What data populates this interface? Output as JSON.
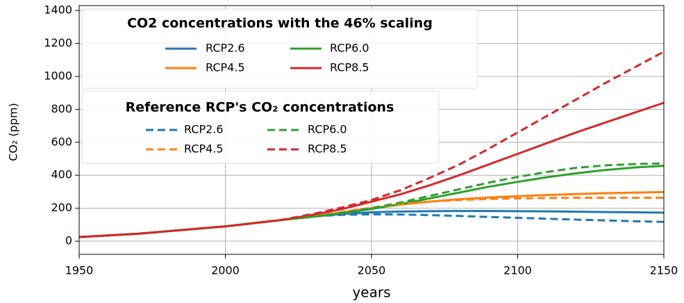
{
  "chart_data": {
    "type": "line",
    "xlabel": "years",
    "ylabel": "CO₂ (ppm)",
    "x": [
      1950,
      1960,
      1970,
      1980,
      1990,
      2000,
      2010,
      2020,
      2030,
      2040,
      2050,
      2060,
      2070,
      2080,
      2090,
      2100,
      2110,
      2120,
      2130,
      2140,
      2150
    ],
    "xlim": [
      1950,
      2150
    ],
    "xticks": [
      1950,
      2000,
      2050,
      2100,
      2150
    ],
    "ylim": [
      -80,
      1430
    ],
    "yticks": [
      0,
      200,
      400,
      600,
      800,
      1000,
      1200,
      1400
    ],
    "grid": true,
    "legend_titles": [
      "CO2 concentrations with the 46% scaling",
      "Reference RCP's CO₂ concentrations"
    ],
    "series": [
      {
        "name": "RCP2.6",
        "color": "#1f77b4",
        "style": "solid",
        "values": [
          25,
          35,
          45,
          60,
          75,
          90,
          110,
          130,
          150,
          165,
          175,
          180,
          182,
          183,
          183,
          182,
          181,
          179,
          177,
          175,
          173
        ]
      },
      {
        "name": "RCP4.5",
        "color": "#ff7f0e",
        "style": "solid",
        "values": [
          25,
          35,
          45,
          60,
          75,
          90,
          110,
          130,
          150,
          175,
          200,
          222,
          240,
          255,
          265,
          273,
          280,
          286,
          291,
          295,
          298
        ]
      },
      {
        "name": "RCP6.0",
        "color": "#2ca02c",
        "style": "solid",
        "values": [
          25,
          35,
          45,
          60,
          75,
          90,
          110,
          130,
          148,
          170,
          195,
          225,
          260,
          295,
          330,
          360,
          388,
          412,
          432,
          447,
          457
        ]
      },
      {
        "name": "RCP8.5",
        "color": "#d62728",
        "style": "solid",
        "values": [
          25,
          35,
          45,
          60,
          75,
          90,
          110,
          130,
          160,
          195,
          240,
          285,
          340,
          400,
          465,
          530,
          595,
          660,
          720,
          780,
          840
        ]
      },
      {
        "name": "RCP2.6",
        "color": "#1f77b4",
        "style": "dashed",
        "values": [
          25,
          35,
          45,
          60,
          75,
          90,
          110,
          130,
          150,
          160,
          163,
          162,
          158,
          153,
          147,
          142,
          136,
          131,
          126,
          121,
          117
        ]
      },
      {
        "name": "RCP4.5",
        "color": "#ff7f0e",
        "style": "dashed",
        "values": [
          25,
          35,
          45,
          60,
          75,
          90,
          110,
          130,
          150,
          177,
          203,
          225,
          240,
          250,
          256,
          260,
          262,
          263,
          263,
          263,
          263
        ]
      },
      {
        "name": "RCP6.0",
        "color": "#2ca02c",
        "style": "dashed",
        "values": [
          25,
          35,
          45,
          60,
          75,
          90,
          110,
          130,
          148,
          172,
          200,
          235,
          275,
          315,
          355,
          390,
          420,
          445,
          460,
          468,
          472
        ]
      },
      {
        "name": "RCP8.5",
        "color": "#d62728",
        "style": "dashed",
        "values": [
          25,
          35,
          45,
          60,
          75,
          90,
          110,
          132,
          165,
          205,
          250,
          310,
          385,
          465,
          560,
          660,
          760,
          860,
          960,
          1055,
          1150
        ]
      }
    ]
  }
}
